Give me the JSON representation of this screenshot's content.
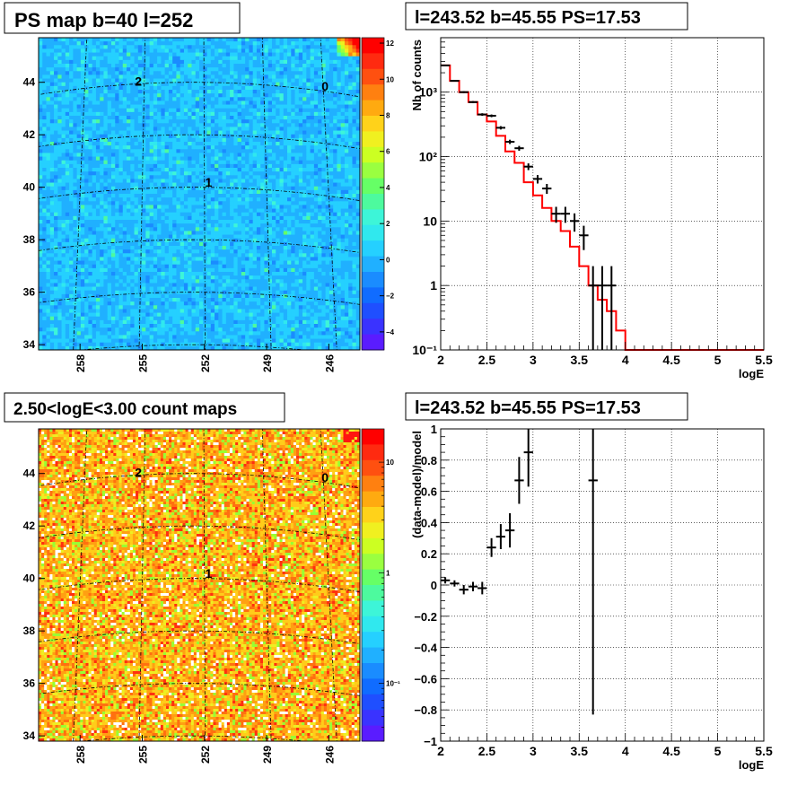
{
  "panels": {
    "ps_map": {
      "title": "PS map b=40 l=252",
      "y_ticks": [
        "34",
        "36",
        "38",
        "40",
        "42",
        "44"
      ],
      "x_ticks": [
        "258",
        "255",
        "252",
        "249",
        "246"
      ],
      "point_labels": [
        "2",
        "0",
        "1"
      ],
      "colorbar_ticks": [
        "12",
        "10",
        "8",
        "6",
        "4",
        "2",
        "0",
        "−2",
        "−4"
      ]
    },
    "spectrum": {
      "title": "l=243.52 b=45.55 PS=17.53"
    },
    "count_map": {
      "title": "2.50<logE<3.00 count maps",
      "y_ticks": [
        "34",
        "36",
        "38",
        "40",
        "42",
        "44"
      ],
      "x_ticks": [
        "258",
        "255",
        "252",
        "249",
        "246"
      ],
      "point_labels": [
        "2",
        "0",
        "1"
      ],
      "colorbar_ticks": [
        "10",
        "1",
        "10⁻¹"
      ]
    },
    "residual": {
      "title": "l=243.52 b=45.55 PS=17.53"
    }
  },
  "chart_data": [
    {
      "type": "heatmap",
      "title": "PS map b=40 l=252",
      "xlabel": "",
      "ylabel": "",
      "x_ticks": [
        258,
        255,
        252,
        249,
        246
      ],
      "y_ticks": [
        34,
        36,
        38,
        40,
        42,
        44
      ],
      "xlim": [
        260,
        244.5
      ],
      "ylim": [
        33.8,
        45.7
      ],
      "zlim": [
        -5,
        12
      ],
      "grid": true,
      "labeled_points": [
        {
          "label": "2",
          "l": 255.3,
          "b": 44.1
        },
        {
          "label": "0",
          "l": 245.9,
          "b": 44.2
        },
        {
          "label": "1",
          "l": 251.8,
          "b": 40.2
        }
      ]
    },
    {
      "type": "line",
      "title": "l=243.52 b=45.55 PS=17.53",
      "xlabel": "logE",
      "ylabel": "Nb of counts",
      "xlim": [
        2,
        5.5
      ],
      "ylim": [
        0.1,
        7000
      ],
      "yscale": "log",
      "x_ticks": [
        2,
        2.5,
        3,
        3.5,
        4,
        4.5,
        5,
        5.5
      ],
      "y_ticks": [
        "10⁻¹",
        "1",
        "10",
        "10²",
        "10³"
      ],
      "grid": true,
      "series": [
        {
          "kind": "data",
          "color": "#000000",
          "x": [
            2.05,
            2.15,
            2.25,
            2.35,
            2.45,
            2.55,
            2.65,
            2.75,
            2.85,
            2.95,
            3.05,
            3.15,
            3.25,
            3.35,
            3.45,
            3.55,
            3.65,
            3.75,
            3.85
          ],
          "y": [
            2600,
            1500,
            1000,
            700,
            450,
            430,
            280,
            170,
            135,
            70,
            45,
            32,
            13,
            13,
            10,
            6,
            1,
            1,
            1
          ]
        },
        {
          "kind": "model",
          "color": "#ff0000",
          "bin_edges": [
            2.0,
            2.1,
            2.2,
            2.3,
            2.4,
            2.5,
            2.6,
            2.7,
            2.8,
            2.9,
            3.0,
            3.1,
            3.2,
            3.3,
            3.4,
            3.5,
            3.6,
            3.7,
            3.8,
            3.9,
            4.0,
            5.5
          ],
          "values": [
            2600,
            1500,
            1000,
            700,
            450,
            350,
            210,
            120,
            80,
            40,
            25,
            16,
            10,
            7,
            4,
            2,
            1,
            0.6,
            0.4,
            0.2,
            0.1
          ]
        }
      ]
    },
    {
      "type": "heatmap",
      "title": "2.50<logE<3.00 count maps",
      "xlabel": "",
      "ylabel": "",
      "x_ticks": [
        258,
        255,
        252,
        249,
        246
      ],
      "y_ticks": [
        34,
        36,
        38,
        40,
        42,
        44
      ],
      "xlim": [
        260,
        244.5
      ],
      "ylim": [
        33.8,
        45.7
      ],
      "zscale": "log",
      "zlim": [
        0.03,
        20
      ],
      "grid": true,
      "labeled_points": [
        {
          "label": "2",
          "l": 255.3,
          "b": 44.1
        },
        {
          "label": "0",
          "l": 245.9,
          "b": 44.2
        },
        {
          "label": "1",
          "l": 251.8,
          "b": 40.2
        }
      ]
    },
    {
      "type": "scatter",
      "title": "l=243.52 b=45.55 PS=17.53",
      "xlabel": "logE",
      "ylabel": "(data-model)/model",
      "xlim": [
        2,
        5.5
      ],
      "ylim": [
        -1,
        1
      ],
      "x_ticks": [
        2,
        2.5,
        3,
        3.5,
        4,
        4.5,
        5,
        5.5
      ],
      "y_ticks": [
        -1,
        -0.8,
        -0.6,
        -0.4,
        -0.2,
        0,
        0.2,
        0.4,
        0.6,
        0.8,
        1
      ],
      "grid": true,
      "series": [
        {
          "kind": "data",
          "color": "#000000",
          "x": [
            2.05,
            2.15,
            2.25,
            2.35,
            2.45,
            2.55,
            2.65,
            2.75,
            2.85,
            2.95,
            3.65
          ],
          "y": [
            0.03,
            0.01,
            -0.03,
            -0.01,
            -0.02,
            0.24,
            0.31,
            0.35,
            0.67,
            0.85,
            0.67
          ],
          "err": [
            0.02,
            0.02,
            0.03,
            0.03,
            0.04,
            0.06,
            0.08,
            0.11,
            0.15,
            0.22,
            1.5
          ]
        }
      ]
    }
  ]
}
